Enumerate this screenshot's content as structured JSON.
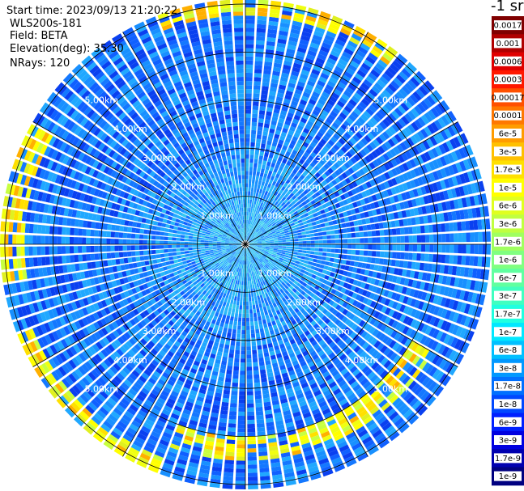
{
  "info": {
    "start_time": "Start time: 2023/09/13 21:20:22",
    "instrument": "WLS200s-181",
    "field": "Field: BETA",
    "elevation": "Elevation(deg): 35.30",
    "nrays": "NRays: 120"
  },
  "colorbar": {
    "unit": "-1 sr",
    "labels": [
      "0.0017",
      "0.001",
      "0.0006",
      "0.0003",
      "0.00017",
      "0.0001",
      "6e-5",
      "3e-5",
      "1.7e-5",
      "1e-5",
      "6e-6",
      "3e-6",
      "1.7e-6",
      "1e-6",
      "6e-7",
      "3e-7",
      "1.7e-7",
      "1e-7",
      "6e-8",
      "3e-8",
      "1.7e-8",
      "1e-8",
      "6e-9",
      "3e-9",
      "1.7e-9",
      "1e-9"
    ],
    "colors": [
      "#800000",
      "#b00000",
      "#e00000",
      "#ff1800",
      "#ff5000",
      "#ff7800",
      "#ff9c00",
      "#ffc000",
      "#ffe000",
      "#ffff00",
      "#e0ff20",
      "#c0ff40",
      "#a0ff60",
      "#80ff80",
      "#60ffa0",
      "#40ffc0",
      "#20ffe0",
      "#00e8ff",
      "#00c0ff",
      "#0098ff",
      "#0070ff",
      "#0048ff",
      "#0020ff",
      "#0000e0",
      "#0000b0",
      "#000080"
    ]
  },
  "chart_data": {
    "type": "polar-ppi",
    "field": "BETA",
    "n_rays": 120,
    "elevation_deg": 35.3,
    "range_rings_km": [
      1.0,
      2.0,
      3.0,
      4.0,
      5.0
    ],
    "ring_labels": [
      "1.00km",
      "2.00km",
      "3.00km",
      "4.00km",
      "5.00km"
    ],
    "spokes_deg": [
      0,
      30,
      60,
      90,
      120,
      150,
      180,
      210,
      240,
      270,
      300,
      330
    ],
    "max_range_km": 5.1,
    "features": [
      {
        "description": "enhanced backscatter arc",
        "azimuth_deg": [
          200,
          250
        ],
        "range_km": [
          4.8,
          5.1
        ],
        "level": "1e-5"
      },
      {
        "description": "enhanced backscatter arc",
        "azimuth_deg": [
          260,
          300
        ],
        "range_km": [
          4.6,
          5.1
        ],
        "level": "1e-5"
      },
      {
        "description": "enhanced backscatter arc",
        "azimuth_deg": [
          120,
          200
        ],
        "range_km": [
          4.0,
          4.5
        ],
        "level": "1e-5"
      },
      {
        "description": "enhanced backscatter arc",
        "azimuth_deg": [
          340,
          40
        ],
        "range_km": [
          4.8,
          5.1
        ],
        "level": "1e-5"
      }
    ]
  }
}
